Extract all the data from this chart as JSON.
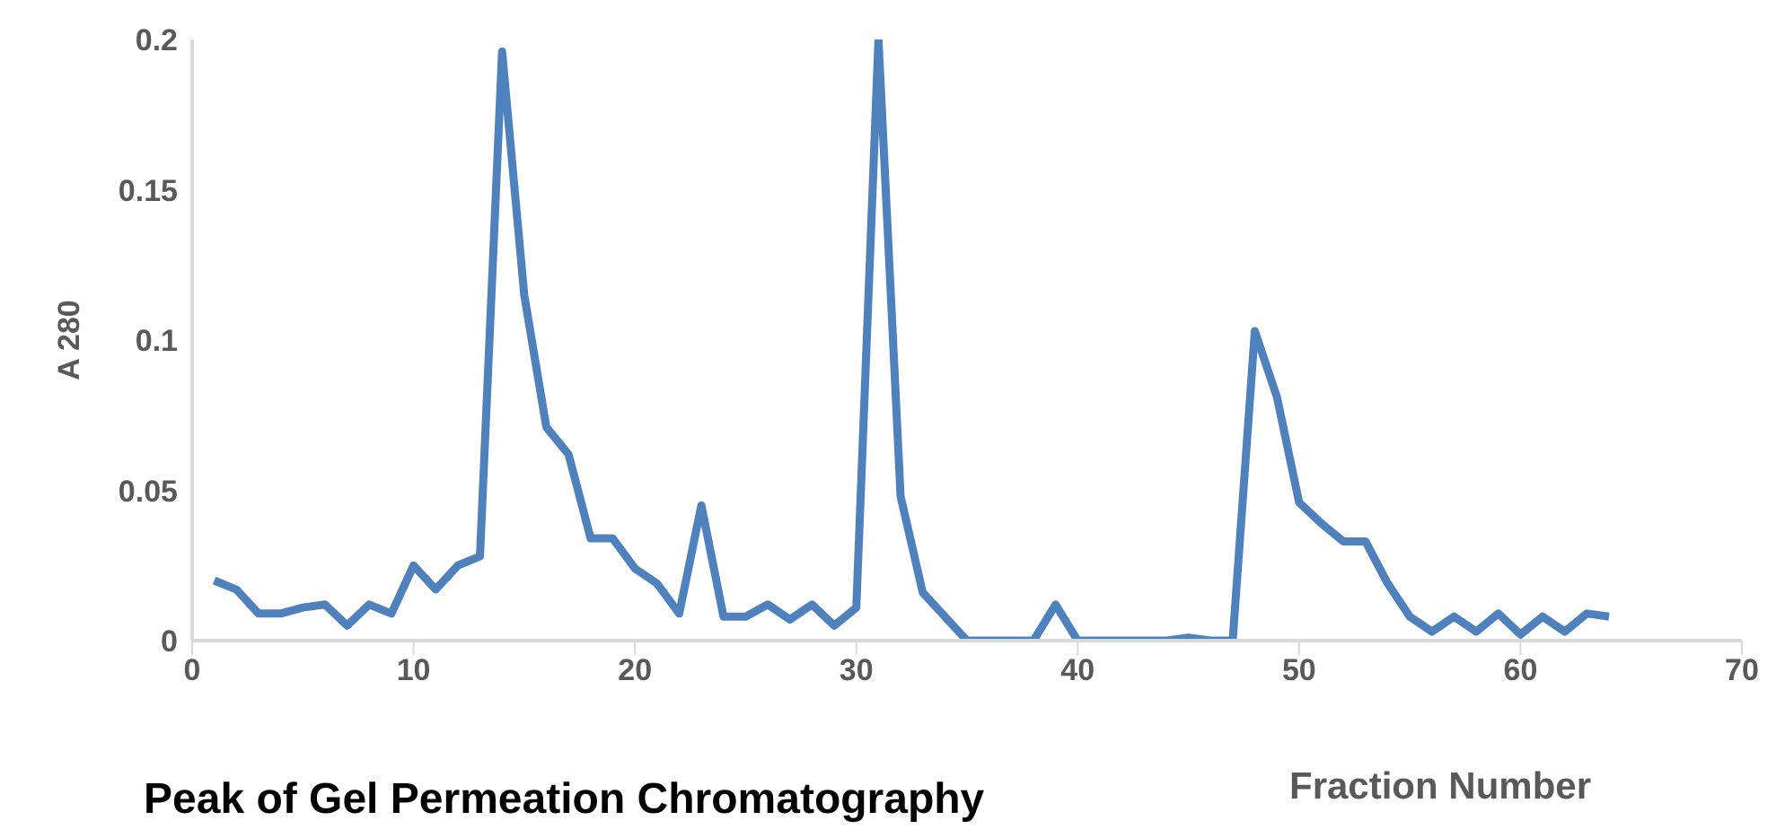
{
  "chart_data": {
    "type": "line",
    "title": "Peak of Gel Permeation Chromatography",
    "xlabel": "Fraction Number",
    "ylabel": "A 280",
    "x": [
      1,
      2,
      3,
      4,
      5,
      6,
      7,
      8,
      9,
      10,
      11,
      12,
      13,
      14,
      15,
      16,
      17,
      18,
      19,
      20,
      21,
      22,
      23,
      24,
      25,
      26,
      27,
      28,
      29,
      30,
      31,
      32,
      33,
      34,
      35,
      36,
      37,
      38,
      39,
      40,
      41,
      42,
      43,
      44,
      45,
      46,
      47,
      48,
      49,
      50,
      51,
      52,
      53,
      54,
      55,
      56,
      57,
      58,
      59,
      60,
      61,
      62,
      63,
      64
    ],
    "series": [
      {
        "color": "#4f81bd",
        "values": [
          0.02,
          0.017,
          0.009,
          0.009,
          0.011,
          0.012,
          0.005,
          0.012,
          0.009,
          0.025,
          0.017,
          0.025,
          0.028,
          0.196,
          0.115,
          0.071,
          0.062,
          0.034,
          0.034,
          0.024,
          0.019,
          0.009,
          0.045,
          0.008,
          0.008,
          0.012,
          0.007,
          0.012,
          0.005,
          0.011,
          0.2,
          0.048,
          0.016,
          0.008,
          0,
          0,
          0,
          0,
          0.012,
          0,
          0,
          0,
          0,
          0,
          0.001,
          0,
          0,
          0.103,
          0.081,
          0.046,
          0.039,
          0.033,
          0.033,
          0.019,
          0.008,
          0.003,
          0.008,
          0.003,
          0.009,
          0.002,
          0.008,
          0.003,
          0.009,
          0.008
        ]
      }
    ],
    "xlim": [
      0,
      70
    ],
    "xticks": [
      0,
      10,
      20,
      30,
      40,
      50,
      60,
      70
    ],
    "ylim": [
      0,
      0.2
    ],
    "yticks": [
      0,
      0.05,
      0.1,
      0.15,
      0.2
    ],
    "grid": false,
    "legend": false,
    "marker": "none",
    "line_style": "solid"
  }
}
